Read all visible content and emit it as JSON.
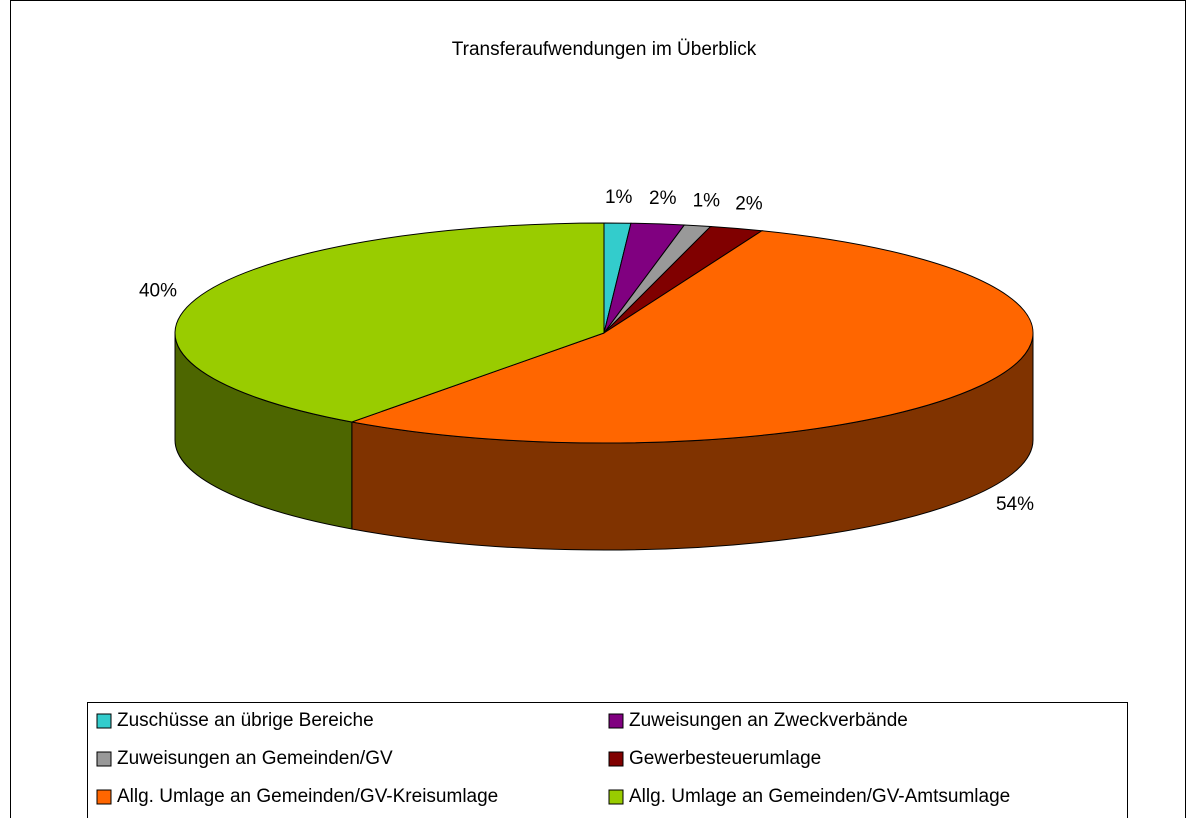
{
  "chart_data": {
    "type": "pie",
    "title": "Transferaufwendungen im Überblick",
    "categories": [
      "Zuschüsse an übrige Bereiche",
      "Zuweisungen an Zweckverbände",
      "Zuweisungen an Gemeinden/GV",
      "Gewerbesteuerumlage",
      "Allg. Umlage an Gemeinden/GV-Kreisumlage",
      "Allg. Umlage an Gemeinden/GV-Amtsumlage"
    ],
    "values": [
      1,
      2,
      1,
      2,
      54,
      40
    ],
    "value_labels": [
      "1%",
      "2%",
      "1%",
      "2%",
      "54%",
      "40%"
    ],
    "colors": [
      "#33cccc",
      "#800080",
      "#999999",
      "#800000",
      "#ff6600",
      "#99cc00"
    ],
    "side_colors": [
      "#1a6666",
      "#400040",
      "#4d4d4d",
      "#400000",
      "#803300",
      "#4d6600"
    ],
    "legend": "bottom"
  }
}
